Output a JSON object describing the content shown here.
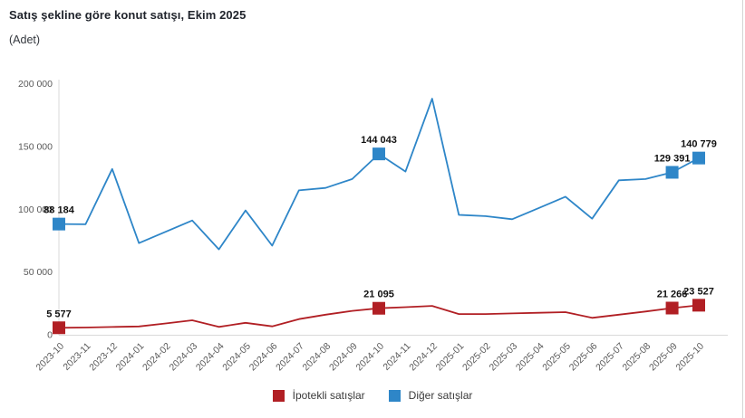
{
  "chart": {
    "title": "Satış şekline göre konut satışı, Ekim 2025",
    "subtitle": "(Adet)"
  },
  "chart_data": {
    "type": "line",
    "title": "Satış şekline göre konut satışı, Ekim 2025",
    "ylabel": "Adet",
    "ylim": [
      0,
      200000
    ],
    "grid": false,
    "legend_position": "bottom",
    "y_ticks": [
      {
        "value": 0,
        "label": "0"
      },
      {
        "value": 50000,
        "label": "50 000"
      },
      {
        "value": 100000,
        "label": "100 000"
      },
      {
        "value": 150000,
        "label": "150 000"
      },
      {
        "value": 200000,
        "label": "200 000"
      }
    ],
    "categories": [
      "2023-10",
      "2023-11",
      "2023-12",
      "2024-01",
      "2024-02",
      "2024-03",
      "2024-04",
      "2024-05",
      "2024-06",
      "2024-07",
      "2024-08",
      "2024-09",
      "2024-10",
      "2024-11",
      "2024-12",
      "2025-01",
      "2025-02",
      "2025-03",
      "2025-04",
      "2025-05",
      "2025-06",
      "2025-07",
      "2025-08",
      "2025-09",
      "2025-10"
    ],
    "series": [
      {
        "name": "İpotekli satışlar",
        "color": "#b11f24",
        "values": [
          5577,
          5800,
          6200,
          6600,
          9000,
          11500,
          6300,
          9500,
          6700,
          12500,
          16000,
          19000,
          21095,
          22000,
          23000,
          16500,
          16500,
          17000,
          17500,
          18000,
          13500,
          16000,
          18500,
          21266,
          23527
        ],
        "labeled_points": [
          {
            "index": 0,
            "label": "5 577"
          },
          {
            "index": 12,
            "label": "21 095"
          },
          {
            "index": 23,
            "label": "21 266"
          },
          {
            "index": 24,
            "label": "23 527"
          }
        ]
      },
      {
        "name": "Diğer satışlar",
        "color": "#2e86c8",
        "values": [
          88184,
          88000,
          132000,
          73000,
          82000,
          91000,
          68000,
          99000,
          71000,
          115000,
          117000,
          124000,
          144043,
          130000,
          188000,
          95500,
          94500,
          92000,
          101000,
          110000,
          92500,
          123000,
          124000,
          129391,
          140779
        ],
        "labeled_points": [
          {
            "index": 0,
            "label": "88 184"
          },
          {
            "index": 12,
            "label": "144 043"
          },
          {
            "index": 23,
            "label": "129 391"
          },
          {
            "index": 24,
            "label": "140 779"
          }
        ]
      }
    ]
  }
}
